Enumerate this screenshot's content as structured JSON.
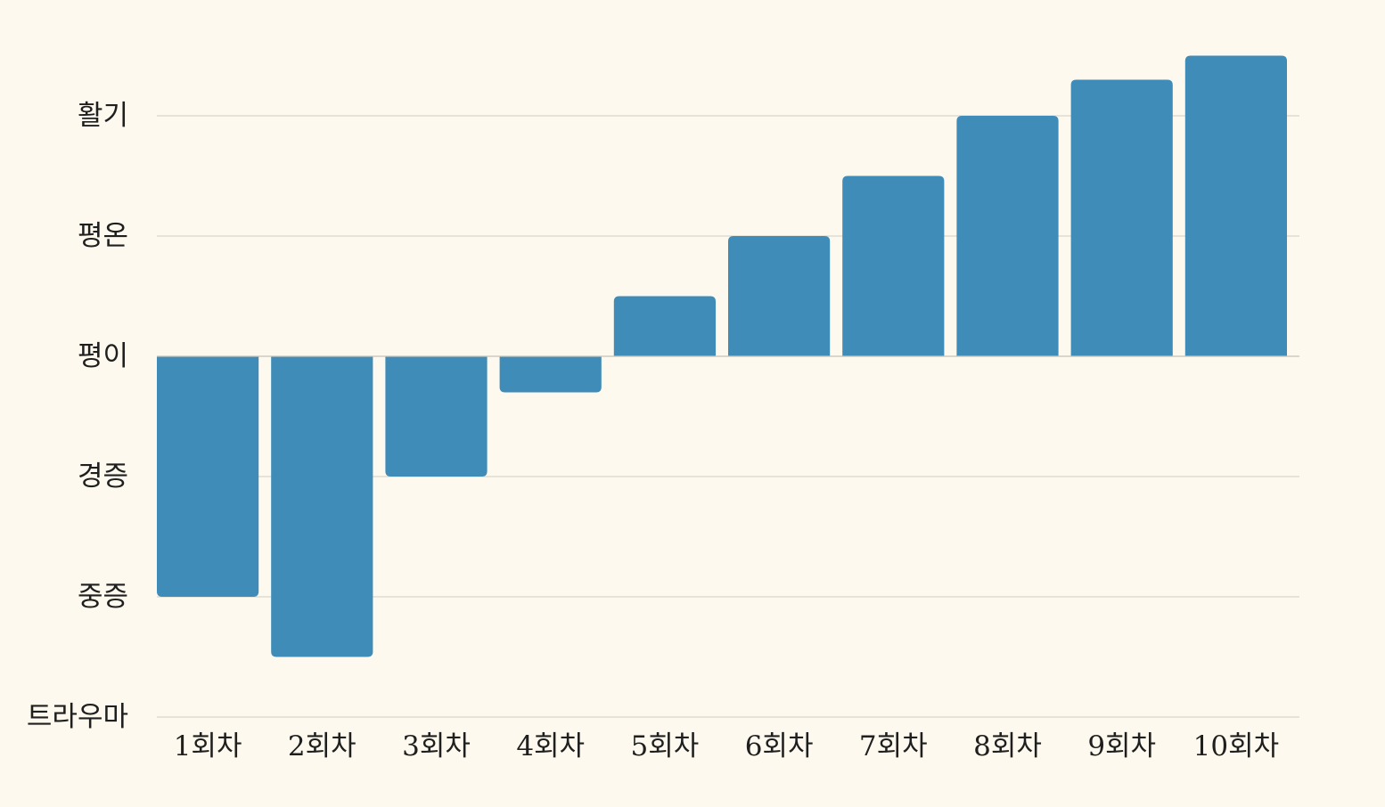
{
  "chart_data": {
    "type": "bar",
    "title": "",
    "xlabel": "",
    "ylabel": "",
    "categories": [
      "1회차",
      "2회차",
      "3회차",
      "4회차",
      "5회차",
      "6회차",
      "7회차",
      "8회차",
      "9회차",
      "10회차"
    ],
    "series": [
      {
        "values": [
          -2.0,
          -2.5,
          -1.0,
          -0.3,
          0.5,
          1.0,
          1.5,
          2.0,
          2.3,
          2.5
        ]
      }
    ],
    "y_ticks": [
      {
        "value": 2,
        "label": "활기"
      },
      {
        "value": 1,
        "label": "평온"
      },
      {
        "value": 0,
        "label": "평이"
      },
      {
        "value": -1,
        "label": "경증"
      },
      {
        "value": -2,
        "label": "중증"
      },
      {
        "value": -3,
        "label": "트라우마"
      }
    ],
    "ylim": [
      -3,
      2.5
    ],
    "grid": true,
    "legend": "none",
    "bar_color": "#3f8cb8",
    "background_color": "#fdf9ee"
  }
}
